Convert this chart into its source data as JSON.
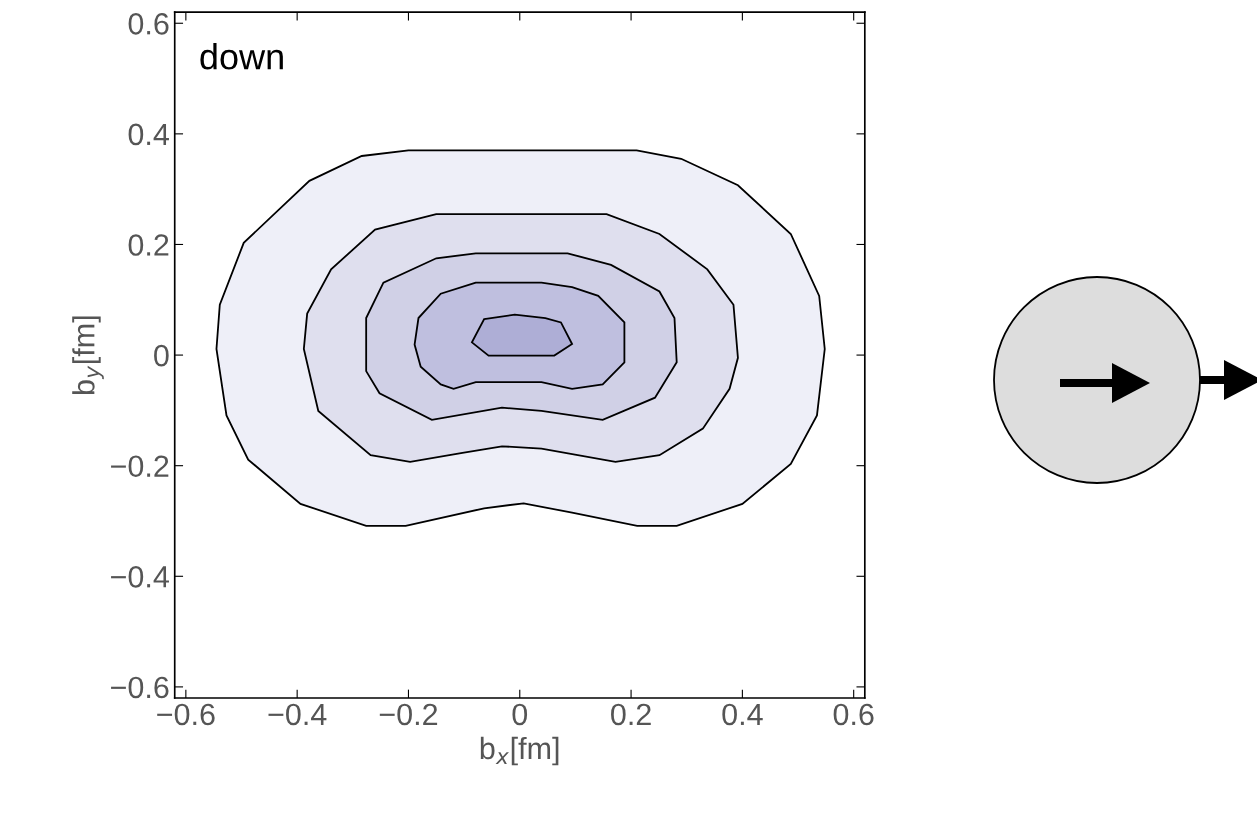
{
  "chart_data": {
    "type": "area",
    "xlabel": "b$_{x}$[fm]",
    "ylabel": "b$_{y}$[fm]",
    "annotations": [
      "down"
    ],
    "xlim": [
      -0.62,
      0.62
    ],
    "ylim": [
      -0.62,
      0.62
    ],
    "xticks": [
      {
        "value": -0.6,
        "label": "−0.6"
      },
      {
        "value": -0.4,
        "label": "−0.4"
      },
      {
        "value": -0.2,
        "label": "−0.2"
      },
      0,
      0.2,
      0.4,
      0.6
    ],
    "yticks": [
      {
        "value": -0.6,
        "label": "−0.6"
      },
      {
        "value": -0.4,
        "label": "−0.4"
      },
      {
        "value": -0.2,
        "label": "−0.2"
      },
      0,
      0.2,
      0.4,
      0.6
    ],
    "grid": false,
    "series": [
      {
        "color": "#eeeff8",
        "x": [
          -0.2,
          -0.284,
          -0.378,
          -0.496,
          -0.539,
          -0.545,
          -0.527,
          -0.488,
          -0.394,
          -0.276,
          -0.205,
          -0.064,
          0.007,
          0.094,
          0.211,
          0.282,
          0.4,
          0.487,
          0.534,
          0.548,
          0.538,
          0.487,
          0.392,
          0.29,
          0.21
        ],
        "values": [
          0.37,
          0.36,
          0.315,
          0.203,
          0.091,
          0.011,
          -0.109,
          -0.189,
          -0.269,
          -0.309,
          -0.309,
          -0.277,
          -0.268,
          -0.285,
          -0.309,
          -0.309,
          -0.269,
          -0.197,
          -0.109,
          0.011,
          0.107,
          0.219,
          0.307,
          0.355,
          0.37
        ]
      },
      {
        "color": "#dfdfee",
        "x": [
          -0.15,
          -0.26,
          -0.339,
          -0.382,
          -0.388,
          -0.362,
          -0.268,
          -0.197,
          -0.103,
          -0.032,
          0.039,
          0.172,
          0.251,
          0.329,
          0.377,
          0.392,
          0.384,
          0.337,
          0.251,
          0.156
        ],
        "values": [
          0.255,
          0.227,
          0.155,
          0.075,
          0.011,
          -0.101,
          -0.181,
          -0.193,
          -0.177,
          -0.165,
          -0.169,
          -0.193,
          -0.181,
          -0.133,
          -0.061,
          -0.005,
          0.091,
          0.155,
          0.219,
          0.255
        ]
      },
      {
        "color": "#d0d0e6",
        "x": [
          -0.079,
          -0.15,
          -0.245,
          -0.276,
          -0.276,
          -0.252,
          -0.158,
          -0.032,
          0.039,
          0.149,
          0.243,
          0.282,
          0.278,
          0.251,
          0.164,
          0.086
        ],
        "values": [
          0.184,
          0.175,
          0.131,
          0.067,
          -0.029,
          -0.069,
          -0.117,
          -0.095,
          -0.101,
          -0.117,
          -0.077,
          -0.013,
          0.067,
          0.115,
          0.163,
          0.184
        ]
      },
      {
        "color": "#bfbfdf",
        "x": [
          -0.079,
          -0.142,
          -0.182,
          -0.189,
          -0.178,
          -0.142,
          -0.119,
          -0.079,
          0.039,
          0.094,
          0.149,
          0.188,
          0.188,
          0.141,
          0.094,
          0.039
        ],
        "values": [
          0.131,
          0.111,
          0.067,
          0.019,
          -0.021,
          -0.053,
          -0.061,
          -0.049,
          -0.049,
          -0.061,
          -0.053,
          -0.013,
          0.059,
          0.107,
          0.123,
          0.131
        ]
      },
      {
        "color": "#aeaed6",
        "x": [
          -0.064,
          -0.009,
          0.046,
          0.074,
          0.094,
          0.062,
          -0.056,
          -0.086
        ],
        "values": [
          0.065,
          0.073,
          0.067,
          0.059,
          0.02,
          -0.001,
          -0.001,
          0.023
        ]
      }
    ]
  }
}
